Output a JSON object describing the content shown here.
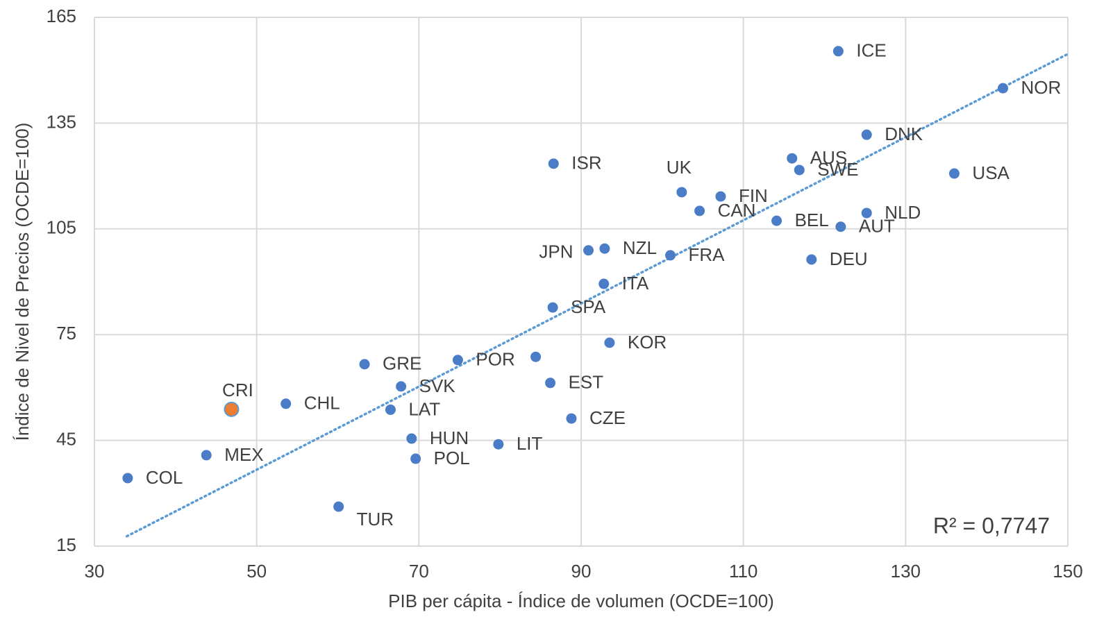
{
  "chart_data": {
    "type": "scatter",
    "x_label": "PIB per cápita - Índice de volumen (OCDE=100)",
    "y_label": "Índice de Nivel de Precios (OCDE=100)",
    "labels": [
      "ICE",
      "NOR",
      "DNK",
      "AUS",
      "SWE",
      "USA",
      "ISR",
      "UK",
      "FIN",
      "CAN",
      "NLD",
      "BEL",
      "AUT",
      "JPN",
      "NZL",
      "FRA",
      "DEU",
      "ITA",
      "SPA",
      "KOR",
      "GRE",
      "POR",
      null,
      "EST",
      "SVK",
      "CHL",
      "CRI",
      "LAT",
      "CZE",
      "HUN",
      "LIT",
      "POL",
      "MEX",
      "COL",
      "TUR"
    ],
    "x": [
      121.7,
      142,
      125.2,
      116,
      116.9,
      136,
      86.6,
      102.4,
      107.2,
      104.6,
      125.2,
      114.1,
      122,
      90.9,
      92.9,
      101,
      118.4,
      92.8,
      86.5,
      93.5,
      63.3,
      74.8,
      84.4,
      86.2,
      67.8,
      53.6,
      46.9,
      66.5,
      88.8,
      69.1,
      79.8,
      69.6,
      43.8,
      34.1,
      60.1
    ],
    "values": [
      155.4,
      144.9,
      131.7,
      125,
      121.7,
      120.7,
      123.5,
      115.4,
      114.2,
      110.1,
      109.5,
      107.3,
      105.6,
      98.9,
      99.4,
      97.5,
      96.3,
      89.4,
      82.7,
      72.7,
      66.6,
      67.8,
      68.7,
      61.3,
      60.3,
      55.4,
      53.8,
      53.7,
      51.2,
      45.5,
      43.9,
      39.8,
      40.8,
      34.3,
      26.2
    ],
    "colors": [
      "#4a7cc8",
      "#4a7cc8",
      "#4a7cc8",
      "#4a7cc8",
      "#4a7cc8",
      "#4a7cc8",
      "#4a7cc8",
      "#4a7cc8",
      "#4a7cc8",
      "#4a7cc8",
      "#4a7cc8",
      "#4a7cc8",
      "#4a7cc8",
      "#4a7cc8",
      "#4a7cc8",
      "#4a7cc8",
      "#4a7cc8",
      "#4a7cc8",
      "#4a7cc8",
      "#4a7cc8",
      "#4a7cc8",
      "#4a7cc8",
      "#4a7cc8",
      "#4a7cc8",
      "#4a7cc8",
      "#4a7cc8",
      "#ed7d31",
      "#4a7cc8",
      "#4a7cc8",
      "#4a7cc8",
      "#4a7cc8",
      "#4a7cc8",
      "#4a7cc8",
      "#4a7cc8",
      "#4a7cc8"
    ],
    "trendline": {
      "x": [
        34,
        150
      ],
      "y": [
        17.8,
        154.6
      ],
      "color": "#5b9bd5"
    },
    "r2_label": "R² = 0,7747",
    "xlim": [
      30,
      150
    ],
    "xticks": [
      30,
      50,
      70,
      90,
      110,
      130,
      150
    ],
    "ylim": [
      15,
      165
    ],
    "yticks": [
      15,
      45,
      75,
      105,
      135,
      165
    ],
    "grid": true
  }
}
